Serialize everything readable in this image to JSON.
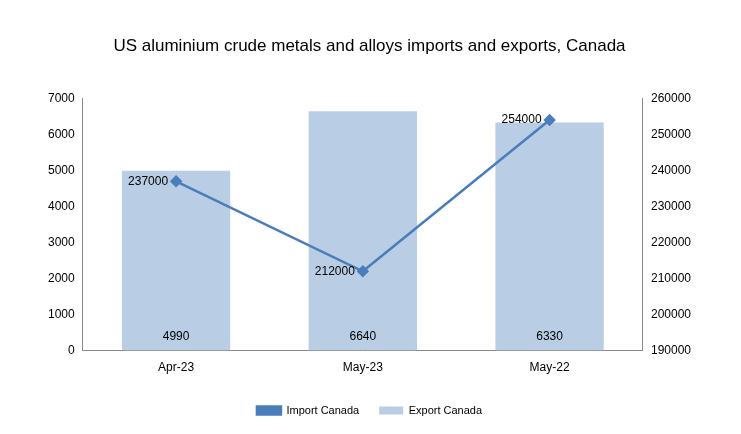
{
  "chart_data": {
    "type": "bar",
    "title": "US aluminium crude metals and alloys imports and exports, Canada",
    "categories": [
      "Apr-23",
      "May-23",
      "May-22"
    ],
    "series": [
      {
        "name": "Export Canada",
        "type": "bar",
        "color": "#b9cde5",
        "values": [
          4990,
          6640,
          6330
        ]
      },
      {
        "name": "Import Canada",
        "type": "line",
        "color": "#4a7ebb",
        "marker": "diamond",
        "axis": "y2",
        "values": [
          237000,
          212000,
          254000
        ]
      }
    ],
    "ylim": [
      0,
      7000
    ],
    "yticks": [
      0,
      1000,
      2000,
      3000,
      4000,
      5000,
      6000,
      7000
    ],
    "y2lim": [
      190000,
      260000
    ],
    "y2ticks": [
      190000,
      200000,
      210000,
      220000,
      230000,
      240000,
      250000,
      260000
    ],
    "grid": false,
    "legend": "bottom",
    "data_labels": true
  }
}
